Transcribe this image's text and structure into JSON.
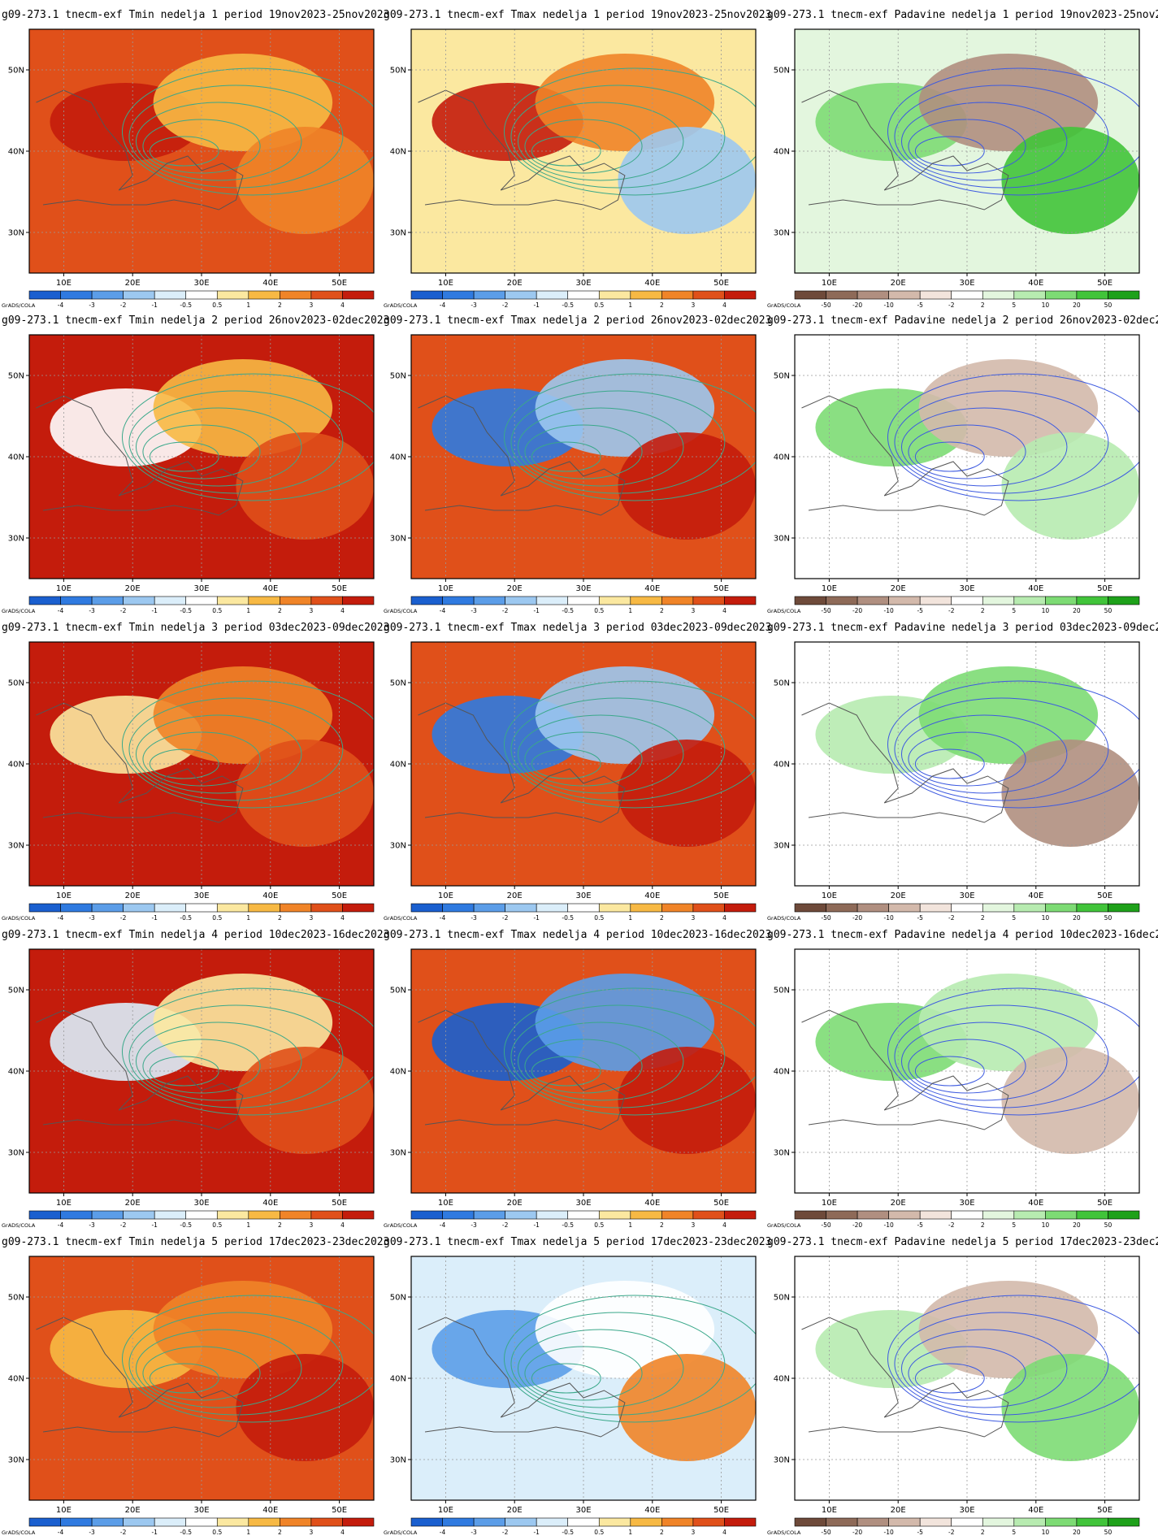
{
  "software_label": "GrADS/COLA",
  "columns": [
    {
      "variable": "Tmin",
      "title_prefix": "g09-273.1 tnecm-exf Tmin",
      "colorbar": {
        "labels": [
          "-4",
          "-3",
          "-2",
          "-1",
          "-0.5",
          "0.5",
          "1",
          "2",
          "3",
          "4"
        ],
        "colors": [
          "#1a5fcf",
          "#2f7ae0",
          "#5b9de8",
          "#9cc8f0",
          "#dbeefa",
          "#ffffff",
          "#fbe8a0",
          "#f7b944",
          "#f08428",
          "#e0501a",
          "#c41c0c"
        ]
      },
      "contour_color": "#3aa88a"
    },
    {
      "variable": "Tmax",
      "title_prefix": "g09-273.1 tnecm-exf Tmax",
      "colorbar": {
        "labels": [
          "-4",
          "-3",
          "-2",
          "-1",
          "-0.5",
          "0.5",
          "1",
          "2",
          "3",
          "4"
        ],
        "colors": [
          "#1a5fcf",
          "#2f7ae0",
          "#5b9de8",
          "#9cc8f0",
          "#dbeefa",
          "#ffffff",
          "#fbe8a0",
          "#f7b944",
          "#f08428",
          "#e0501a",
          "#c41c0c"
        ]
      },
      "contour_color": "#3aa88a"
    },
    {
      "variable": "Padavine",
      "title_prefix": "g09-273.1 tnecm-exf Padavine",
      "colorbar": {
        "labels": [
          "-50",
          "-20",
          "-10",
          "-5",
          "-2",
          "2",
          "5",
          "10",
          "20",
          "50"
        ],
        "colors": [
          "#6e4a3a",
          "#8e6a58",
          "#b08f80",
          "#d3b9ab",
          "#f2e4dc",
          "#ffffff",
          "#e3f6de",
          "#b7ebb0",
          "#7ddb74",
          "#41c43a",
          "#1ea11a"
        ]
      },
      "contour_color": "#3d5ae0"
    }
  ],
  "weeks": [
    {
      "week": 1,
      "period": "19nov2023-25nov2023"
    },
    {
      "week": 2,
      "period": "26nov2023-02dec2023"
    },
    {
      "week": 3,
      "period": "03dec2023-09dec2023"
    },
    {
      "week": 4,
      "period": "10dec2023-16dec2023"
    },
    {
      "week": 5,
      "period": "17dec2023-23dec2023"
    }
  ],
  "map_axes": {
    "lon_labels": [
      "10E",
      "20E",
      "30E",
      "40E",
      "50E"
    ],
    "lon_values": [
      10,
      20,
      30,
      40,
      50
    ],
    "lat_labels": [
      "30N",
      "40N",
      "50N"
    ],
    "lat_values": [
      30,
      40,
      50
    ],
    "lon_range": [
      5,
      55
    ],
    "lat_range": [
      25,
      55
    ],
    "grid": "dotted"
  },
  "panel_fields": [
    [
      "#e0501a",
      "#fbe8a0",
      "#e3f6de"
    ],
    [
      "#c41c0c",
      "#e0501a",
      "#ffffff"
    ],
    [
      "#c41c0c",
      "#e0501a",
      "#ffffff"
    ],
    [
      "#c41c0c",
      "#e0501a",
      "#ffffff"
    ],
    [
      "#e0501a",
      "#dbeefa",
      "#ffffff"
    ]
  ],
  "panel_blobs": [
    [
      [
        "#c41c0c",
        "#f7b944",
        "#f08428"
      ],
      [
        "#c41c0c",
        "#f08428",
        "#9cc8f0"
      ],
      [
        "#7ddb74",
        "#b08f80",
        "#41c43a"
      ]
    ],
    [
      [
        "#ffffff",
        "#f7b944",
        "#e0501a"
      ],
      [
        "#2f7ae0",
        "#9cc8f0",
        "#c41c0c"
      ],
      [
        "#7ddb74",
        "#d3b9ab",
        "#b7ebb0"
      ]
    ],
    [
      [
        "#fbe8a0",
        "#f08428",
        "#e0501a"
      ],
      [
        "#2f7ae0",
        "#9cc8f0",
        "#c41c0c"
      ],
      [
        "#b7ebb0",
        "#7ddb74",
        "#b08f80"
      ]
    ],
    [
      [
        "#dbeefa",
        "#fbe8a0",
        "#e0501a"
      ],
      [
        "#1a5fcf",
        "#5b9de8",
        "#c41c0c"
      ],
      [
        "#7ddb74",
        "#b7ebb0",
        "#d3b9ab"
      ]
    ],
    [
      [
        "#f7b944",
        "#f08428",
        "#c41c0c"
      ],
      [
        "#5b9de8",
        "#ffffff",
        "#f08428"
      ],
      [
        "#b7ebb0",
        "#d3b9ab",
        "#7ddb74"
      ]
    ]
  ]
}
